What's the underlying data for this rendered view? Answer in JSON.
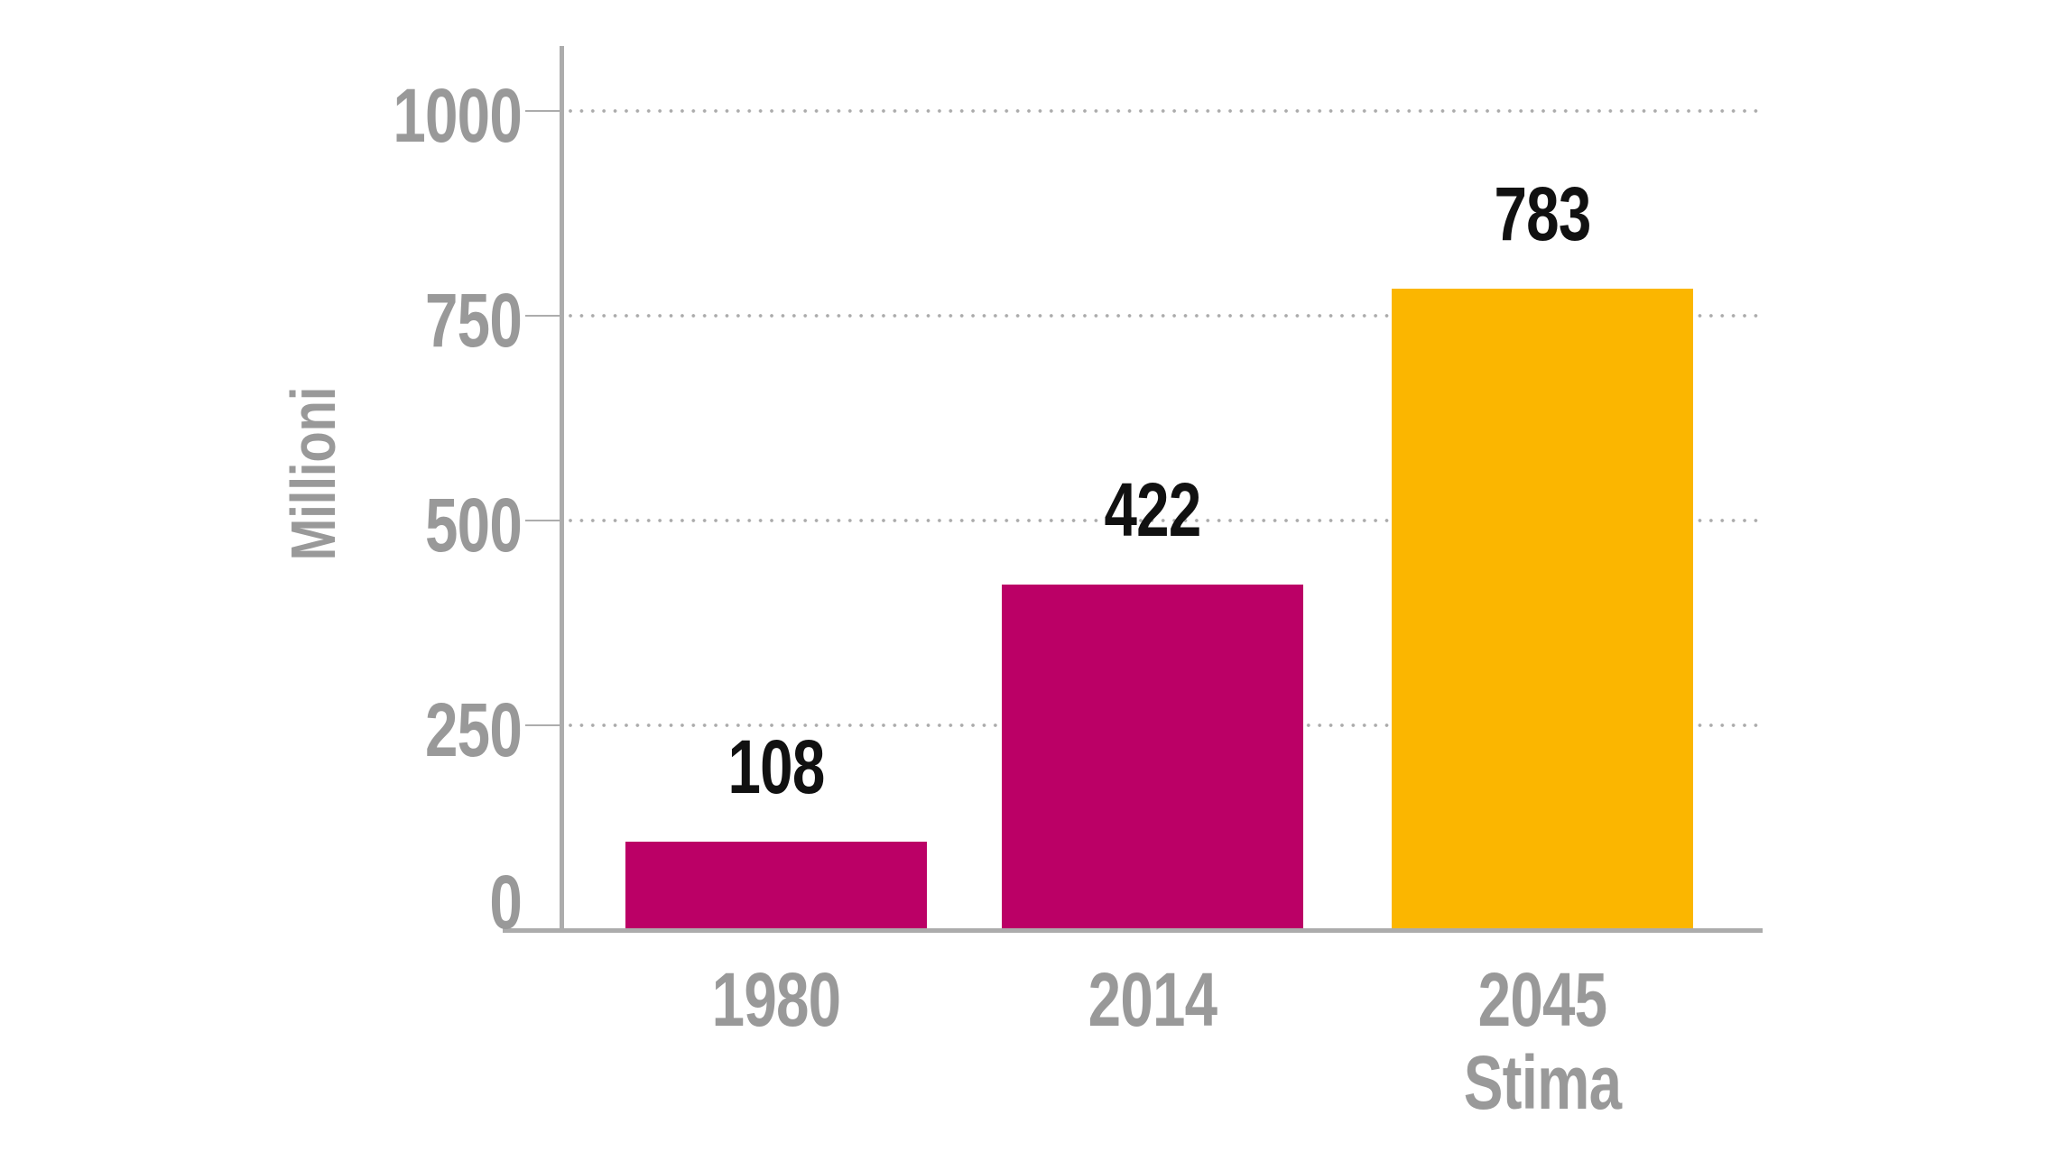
{
  "chart_data": {
    "type": "bar",
    "title": "",
    "xlabel": "",
    "ylabel": "Millioni",
    "categories": [
      {
        "label": "1980",
        "sublabel": ""
      },
      {
        "label": "2014",
        "sublabel": ""
      },
      {
        "label": "2045",
        "sublabel": "Stima"
      }
    ],
    "values": [
      108,
      422,
      783
    ],
    "value_labels": [
      "108",
      "422",
      "783"
    ],
    "bar_colors": [
      "#bb0066",
      "#bb0066",
      "#fbb600"
    ],
    "yticks": [
      0,
      250,
      500,
      750,
      1000
    ],
    "ytick_labels": [
      "0",
      "250",
      "500",
      "750",
      "1000"
    ],
    "ylim": [
      0,
      1080
    ],
    "grid": "horizontal-dotted",
    "legend": "none",
    "colors": {
      "bar_magenta": "#bb0066",
      "bar_amber": "#fbb600",
      "axis_gray": "#acacac",
      "text_gray": "#999999",
      "value_text_black": "#111111",
      "background": "#ffffff"
    }
  }
}
